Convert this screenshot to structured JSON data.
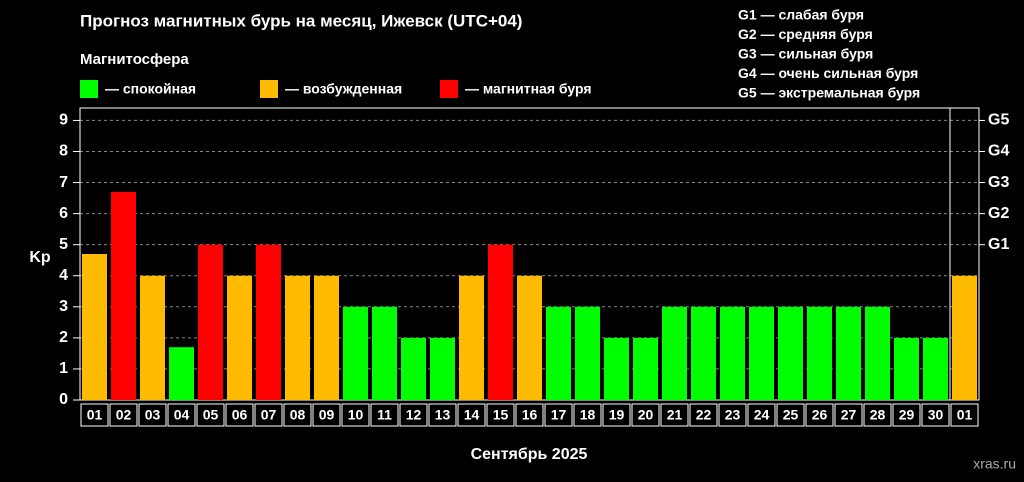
{
  "chart_data": {
    "type": "bar",
    "title": "Прогноз магнитных бурь на месяц, Ижевск (UTC+04)",
    "legend_title": "Магнитосфера",
    "legend": [
      {
        "name": "— спокойная",
        "color": "#00ff00"
      },
      {
        "name": "— возбужденная",
        "color": "#ffbb00"
      },
      {
        "name": "— магнитная буря",
        "color": "#ff0000"
      }
    ],
    "storm_levels": [
      "G1 — слабая буря",
      "G2 — средняя буря",
      "G3 — сильная буря",
      "G4 — очень сильная буря",
      "G5 — экстремальная буря"
    ],
    "categories": [
      "01",
      "02",
      "03",
      "04",
      "05",
      "06",
      "07",
      "08",
      "09",
      "10",
      "11",
      "12",
      "13",
      "14",
      "15",
      "16",
      "17",
      "18",
      "19",
      "20",
      "21",
      "22",
      "23",
      "24",
      "25",
      "26",
      "27",
      "28",
      "29",
      "30",
      "01"
    ],
    "values": [
      4.7,
      6.7,
      4,
      1.7,
      5,
      4,
      5,
      4,
      4,
      3,
      3,
      2,
      2,
      4,
      5,
      4,
      3,
      3,
      2,
      2,
      3,
      3,
      3,
      3,
      3,
      3,
      3,
      3,
      2,
      2,
      4
    ],
    "colors": [
      "#ffbb00",
      "#ff0000",
      "#ffbb00",
      "#00ff00",
      "#ff0000",
      "#ffbb00",
      "#ff0000",
      "#ffbb00",
      "#ffbb00",
      "#00ff00",
      "#00ff00",
      "#00ff00",
      "#00ff00",
      "#ffbb00",
      "#ff0000",
      "#ffbb00",
      "#00ff00",
      "#00ff00",
      "#00ff00",
      "#00ff00",
      "#00ff00",
      "#00ff00",
      "#00ff00",
      "#00ff00",
      "#00ff00",
      "#00ff00",
      "#00ff00",
      "#00ff00",
      "#00ff00",
      "#00ff00",
      "#ffbb00"
    ],
    "xlabel": "Сентябрь 2025",
    "ylabel": "Kp",
    "ylim": [
      0,
      9.4
    ],
    "yticks": [
      0,
      1,
      2,
      3,
      4,
      5,
      6,
      7,
      8,
      9
    ],
    "y2lim": [
      0,
      9.4
    ],
    "y2ticks": [
      {
        "value": 5,
        "label": "G1"
      },
      {
        "value": 6,
        "label": "G2"
      },
      {
        "value": 7,
        "label": "G3"
      },
      {
        "value": 8,
        "label": "G4"
      },
      {
        "value": 9,
        "label": "G5"
      }
    ],
    "grid": true,
    "watermark": "xras.ru"
  }
}
